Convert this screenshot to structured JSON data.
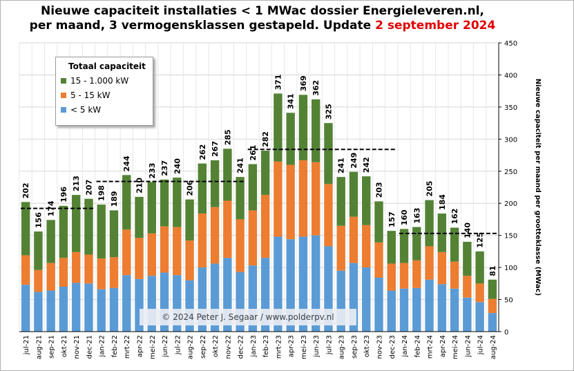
{
  "title_line1": "Nieuwe capaciteit installaties  < 1 MWac dossier Energieleveren.nl,",
  "title_line2": "per maand, 3 vermogensklassen  gestapeld. Update ",
  "title_date": "2 september 2024",
  "copyright": "© 2024 Peter J. Segaar / www.polderpv.nl",
  "legend_title": "Totaal capaciteit",
  "chart_data": {
    "type": "bar",
    "stacked": true,
    "ylabel": "Nieuwe capaciteit per maand per grootteklasse (MWac)",
    "ylim": [
      0,
      450
    ],
    "yticks": [
      0,
      50,
      100,
      150,
      200,
      250,
      300,
      350,
      400,
      450
    ],
    "y_axis_side": "right",
    "legend_position": "top-left",
    "categories": [
      "jul-21",
      "aug-21",
      "sep-21",
      "okt-21",
      "nov-21",
      "dec-21",
      "jan-22",
      "feb-22",
      "mrt-22",
      "apr-22",
      "mei-22",
      "jun-22",
      "jul-22",
      "aug-22",
      "sep-22",
      "okt-22",
      "nov-22",
      "dec-22",
      "jan-23",
      "feb-23",
      "mrt-23",
      "apr-23",
      "mei-23",
      "jun-23",
      "jul-23",
      "aug-23",
      "sep-23",
      "okt-23",
      "nov-23",
      "dec-23",
      "jan-24",
      "feb-24",
      "mrt-24",
      "apr-24",
      "mei-24",
      "jun-24",
      "jul-24",
      "aug-24"
    ],
    "series": [
      {
        "name": "< 5 kW",
        "color": "#5b9bd5",
        "values": [
          73,
          62,
          64,
          70,
          76,
          75,
          66,
          68,
          88,
          82,
          87,
          92,
          88,
          80,
          100,
          106,
          115,
          93,
          103,
          115,
          148,
          144,
          148,
          150,
          133,
          95,
          107,
          100,
          84,
          64,
          67,
          68,
          81,
          74,
          67,
          53,
          46,
          29
        ]
      },
      {
        "name": "5 - 15 kW",
        "color": "#ed7d31",
        "values": [
          46,
          34,
          43,
          45,
          48,
          45,
          48,
          48,
          71,
          64,
          66,
          72,
          75,
          62,
          84,
          88,
          89,
          82,
          86,
          98,
          117,
          116,
          119,
          114,
          97,
          70,
          72,
          66,
          55,
          42,
          40,
          43,
          52,
          50,
          42,
          34,
          29,
          22
        ]
      },
      {
        "name": "15 - 1.000 kW",
        "color": "#548235",
        "values": [
          83,
          60,
          67,
          81,
          89,
          87,
          84,
          73,
          85,
          64,
          80,
          73,
          77,
          64,
          78,
          73,
          81,
          66,
          72,
          69,
          106,
          81,
          102,
          98,
          95,
          76,
          70,
          76,
          64,
          51,
          53,
          52,
          72,
          60,
          53,
          53,
          50,
          30
        ]
      }
    ],
    "totals": [
      202,
      156,
      174,
      196,
      213,
      207,
      198,
      189,
      244,
      210,
      233,
      237,
      240,
      206,
      262,
      267,
      285,
      241,
      261,
      282,
      371,
      341,
      369,
      362,
      325,
      241,
      249,
      242,
      203,
      157,
      160,
      163,
      205,
      184,
      162,
      140,
      125,
      81
    ],
    "averages": [
      {
        "from": "jul-21",
        "to": "dec-21",
        "value": 192
      },
      {
        "from": "jan-22",
        "to": "dec-22",
        "value": 234
      },
      {
        "from": "jan-23",
        "to": "dec-23",
        "value": 284
      },
      {
        "from": "jan-24",
        "to": "aug-24",
        "value": 153
      }
    ]
  }
}
